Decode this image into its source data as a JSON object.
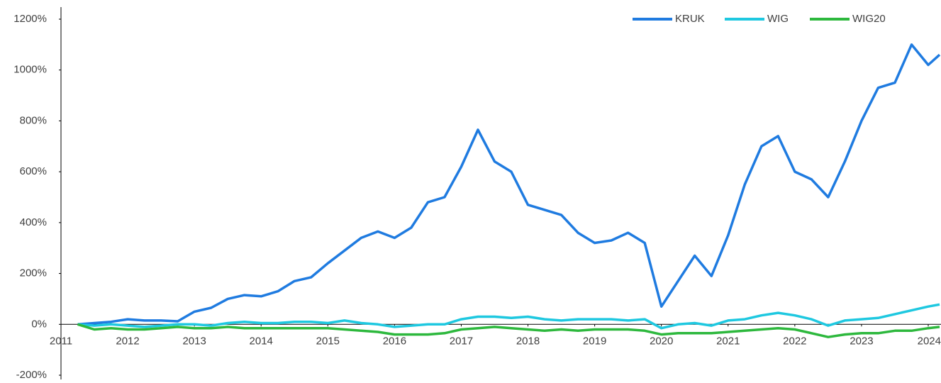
{
  "chart_data": {
    "type": "line",
    "x": [
      2011.25,
      2011.5,
      2011.75,
      2012,
      2012.25,
      2012.5,
      2012.75,
      2013,
      2013.25,
      2013.5,
      2013.75,
      2014,
      2014.25,
      2014.5,
      2014.75,
      2015,
      2015.25,
      2015.5,
      2015.75,
      2016,
      2016.25,
      2016.5,
      2016.75,
      2017,
      2017.25,
      2017.5,
      2017.75,
      2018,
      2018.25,
      2018.5,
      2018.75,
      2019,
      2019.25,
      2019.5,
      2019.75,
      2020,
      2020.25,
      2020.5,
      2020.75,
      2021,
      2021.25,
      2021.5,
      2021.75,
      2022,
      2022.25,
      2022.5,
      2022.75,
      2023,
      2023.25,
      2023.5,
      2023.75,
      2024,
      2024.17
    ],
    "series": [
      {
        "name": "KRUK",
        "color": "#1f7be0",
        "values": [
          0,
          5,
          10,
          20,
          15,
          15,
          12,
          50,
          65,
          100,
          115,
          110,
          130,
          170,
          185,
          240,
          290,
          340,
          365,
          340,
          380,
          480,
          500,
          620,
          765,
          640,
          600,
          470,
          450,
          430,
          360,
          320,
          330,
          360,
          320,
          70,
          170,
          270,
          190,
          350,
          550,
          700,
          740,
          600,
          570,
          500,
          640,
          800,
          930,
          950,
          1100,
          1020,
          1060
        ]
      },
      {
        "name": "WIG",
        "color": "#1ec8e0",
        "values": [
          0,
          -5,
          0,
          -5,
          -10,
          -5,
          0,
          0,
          -5,
          5,
          10,
          5,
          5,
          10,
          10,
          5,
          15,
          5,
          0,
          -10,
          -5,
          0,
          0,
          20,
          30,
          30,
          25,
          30,
          20,
          15,
          20,
          20,
          20,
          15,
          20,
          -15,
          0,
          5,
          -5,
          15,
          20,
          35,
          45,
          35,
          20,
          -5,
          15,
          20,
          25,
          40,
          55,
          70,
          78
        ]
      },
      {
        "name": "WIG20",
        "color": "#2db83d",
        "values": [
          0,
          -20,
          -15,
          -20,
          -20,
          -15,
          -10,
          -15,
          -15,
          -10,
          -15,
          -15,
          -15,
          -15,
          -15,
          -15,
          -20,
          -25,
          -30,
          -40,
          -40,
          -40,
          -35,
          -20,
          -15,
          -10,
          -15,
          -20,
          -25,
          -20,
          -25,
          -20,
          -20,
          -20,
          -25,
          -40,
          -35,
          -35,
          -35,
          -30,
          -25,
          -20,
          -15,
          -20,
          -35,
          -50,
          -40,
          -35,
          -35,
          -25,
          -25,
          -15,
          -10
        ]
      }
    ],
    "xlim": [
      2011,
      2024.17
    ],
    "xticks": [
      2011,
      2012,
      2013,
      2014,
      2015,
      2016,
      2017,
      2018,
      2019,
      2020,
      2021,
      2022,
      2023,
      2024
    ],
    "ylim": [
      -200,
      1200
    ],
    "yticks": [
      {
        "value": -200,
        "label": "-200%"
      },
      {
        "value": 0,
        "label": "0%"
      },
      {
        "value": 200,
        "label": "200%"
      },
      {
        "value": 400,
        "label": "400%"
      },
      {
        "value": 600,
        "label": "600%"
      },
      {
        "value": 800,
        "label": "800%"
      },
      {
        "value": 1000,
        "label": "1000%"
      },
      {
        "value": 1200,
        "label": "1200%"
      }
    ],
    "grid": false,
    "legend": "top-right"
  }
}
